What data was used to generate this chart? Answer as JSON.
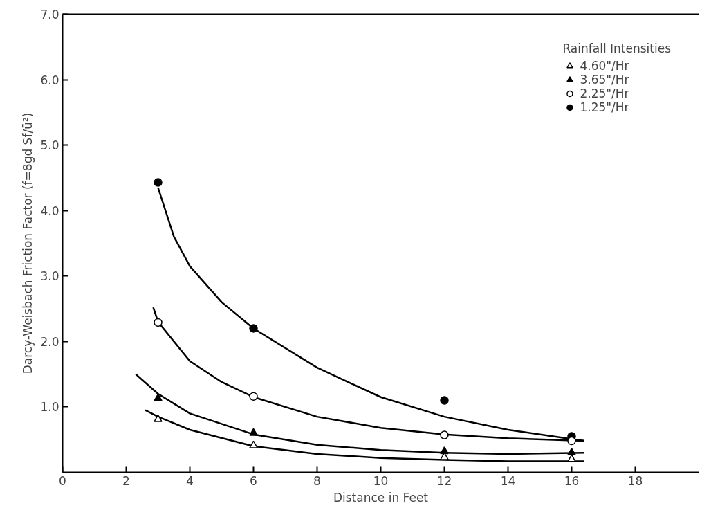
{
  "chart_data": {
    "type": "scatter",
    "xlabel": "Distance in Feet",
    "ylabel": "Darcy-Weisbach Friction Factor (f=8gd Sf/ū²)",
    "legend_title": "Rainfall Intensities",
    "legend": "top right",
    "grid": false,
    "xlim": [
      0,
      20
    ],
    "xticks": [
      0,
      2,
      4,
      6,
      8,
      10,
      12,
      14,
      16,
      18
    ],
    "ylim": [
      0,
      7
    ],
    "yticks": [
      {
        "value": 1,
        "label": "1.0"
      },
      {
        "value": 2,
        "label": "2.0"
      },
      {
        "value": 3,
        "label": "3.0"
      },
      {
        "value": 4,
        "label": "4.0"
      },
      {
        "value": 5,
        "label": "5.0"
      },
      {
        "value": 6,
        "label": "6.0"
      },
      {
        "value": 7,
        "label": "7.0"
      }
    ],
    "series": [
      {
        "name": "4.60\"/Hr",
        "marker": "triangle",
        "color": "#ffffff",
        "x": [
          3,
          6,
          12,
          16
        ],
        "values": [
          0.81,
          0.41,
          0.23,
          0.2
        ]
      },
      {
        "name": "3.65\"/Hr",
        "marker": "triangle",
        "color": "#000000",
        "x": [
          3,
          6,
          12,
          16
        ],
        "values": [
          1.13,
          0.6,
          0.32,
          0.3
        ]
      },
      {
        "name": "2.25\"/Hr",
        "marker": "circle",
        "color": "#ffffff",
        "x": [
          3,
          6,
          12,
          16
        ],
        "values": [
          2.29,
          1.16,
          0.57,
          0.48
        ]
      },
      {
        "name": "1.25\"/Hr",
        "marker": "circle",
        "color": "#000000",
        "x": [
          3,
          6,
          12,
          16
        ],
        "values": [
          4.43,
          2.2,
          1.1,
          0.55
        ]
      },
      {
        "type": "line",
        "color": "#000000",
        "x": [
          2.6,
          3,
          4,
          6,
          8,
          10,
          12,
          14,
          16.4
        ],
        "values": [
          0.95,
          0.85,
          0.65,
          0.4,
          0.28,
          0.22,
          0.19,
          0.17,
          0.17
        ]
      },
      {
        "type": "line",
        "color": "#000000",
        "x": [
          2.3,
          3,
          4,
          6,
          8,
          10,
          12,
          14,
          16.4
        ],
        "values": [
          1.5,
          1.2,
          0.9,
          0.58,
          0.42,
          0.34,
          0.3,
          0.28,
          0.3
        ]
      },
      {
        "type": "line",
        "color": "#000000",
        "x": [
          2.85,
          3,
          4,
          5,
          6,
          8,
          10,
          12,
          14,
          16.4
        ],
        "values": [
          2.52,
          2.3,
          1.7,
          1.38,
          1.15,
          0.85,
          0.68,
          0.58,
          0.52,
          0.48
        ]
      },
      {
        "type": "line",
        "color": "#000000",
        "x": [
          3,
          3.5,
          4,
          5,
          6,
          8,
          10,
          12,
          14,
          16.4
        ],
        "values": [
          4.35,
          3.6,
          3.15,
          2.6,
          2.2,
          1.6,
          1.15,
          0.85,
          0.65,
          0.48
        ]
      }
    ]
  }
}
